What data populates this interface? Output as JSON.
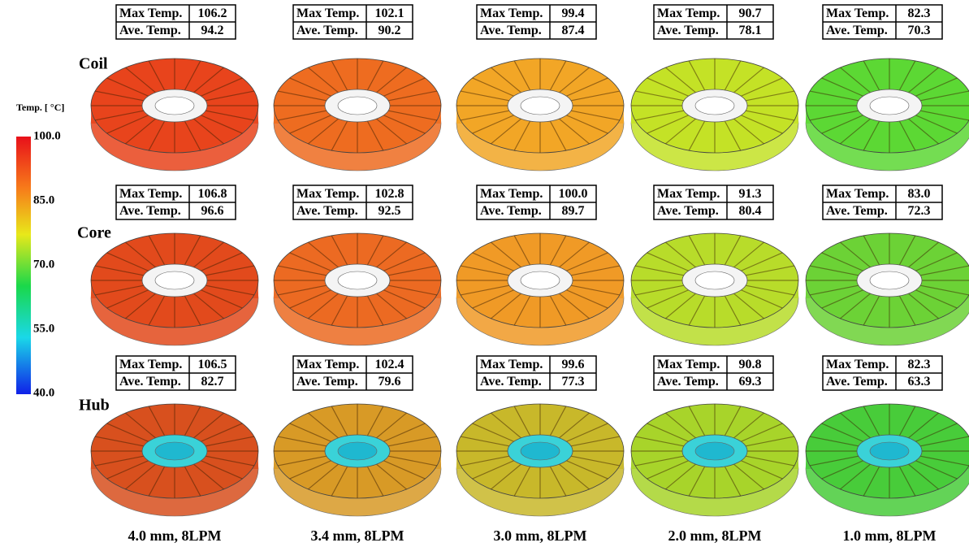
{
  "colorbar": {
    "title": "Temp. [ °C]",
    "ticks": [
      "100.0",
      "85.0",
      "70.0",
      "55.0",
      "40.0"
    ]
  },
  "rows": [
    {
      "label": "Coil",
      "cells": [
        {
          "max_label": "Max Temp.",
          "max": "106.2",
          "ave_label": "Ave. Temp.",
          "ave": "94.2"
        },
        {
          "max_label": "Max Temp.",
          "max": "102.1",
          "ave_label": "Ave. Temp.",
          "ave": "90.2"
        },
        {
          "max_label": "Max Temp.",
          "max": "99.4",
          "ave_label": "Ave. Temp.",
          "ave": "87.4"
        },
        {
          "max_label": "Max Temp.",
          "max": "90.7",
          "ave_label": "Ave. Temp.",
          "ave": "78.1"
        },
        {
          "max_label": "Max Temp.",
          "max": "82.3",
          "ave_label": "Ave. Temp.",
          "ave": "70.3"
        }
      ]
    },
    {
      "label": "Core",
      "cells": [
        {
          "max_label": "Max Temp.",
          "max": "106.8",
          "ave_label": "Ave. Temp.",
          "ave": "96.6"
        },
        {
          "max_label": "Max Temp.",
          "max": "102.8",
          "ave_label": "Ave. Temp.",
          "ave": "92.5"
        },
        {
          "max_label": "Max Temp.",
          "max": "100.0",
          "ave_label": "Ave. Temp.",
          "ave": "89.7"
        },
        {
          "max_label": "Max Temp.",
          "max": "91.3",
          "ave_label": "Ave. Temp.",
          "ave": "80.4"
        },
        {
          "max_label": "Max Temp.",
          "max": "83.0",
          "ave_label": "Ave. Temp.",
          "ave": "72.3"
        }
      ]
    },
    {
      "label": "Hub",
      "cells": [
        {
          "max_label": "Max Temp.",
          "max": "106.5",
          "ave_label": "Ave. Temp.",
          "ave": "82.7"
        },
        {
          "max_label": "Max Temp.",
          "max": "102.4",
          "ave_label": "Ave. Temp.",
          "ave": "79.6"
        },
        {
          "max_label": "Max Temp.",
          "max": "99.6",
          "ave_label": "Ave. Temp.",
          "ave": "77.3"
        },
        {
          "max_label": "Max Temp.",
          "max": "90.8",
          "ave_label": "Ave. Temp.",
          "ave": "69.3"
        },
        {
          "max_label": "Max Temp.",
          "max": "82.3",
          "ave_label": "Ave. Temp.",
          "ave": "63.3"
        }
      ]
    }
  ],
  "columns": [
    "4.0 mm, 8LPM",
    "3.4 mm, 8LPM",
    "3.0 mm, 8LPM",
    "2.0 mm, 8LPM",
    "1.0 mm, 8LPM"
  ]
}
